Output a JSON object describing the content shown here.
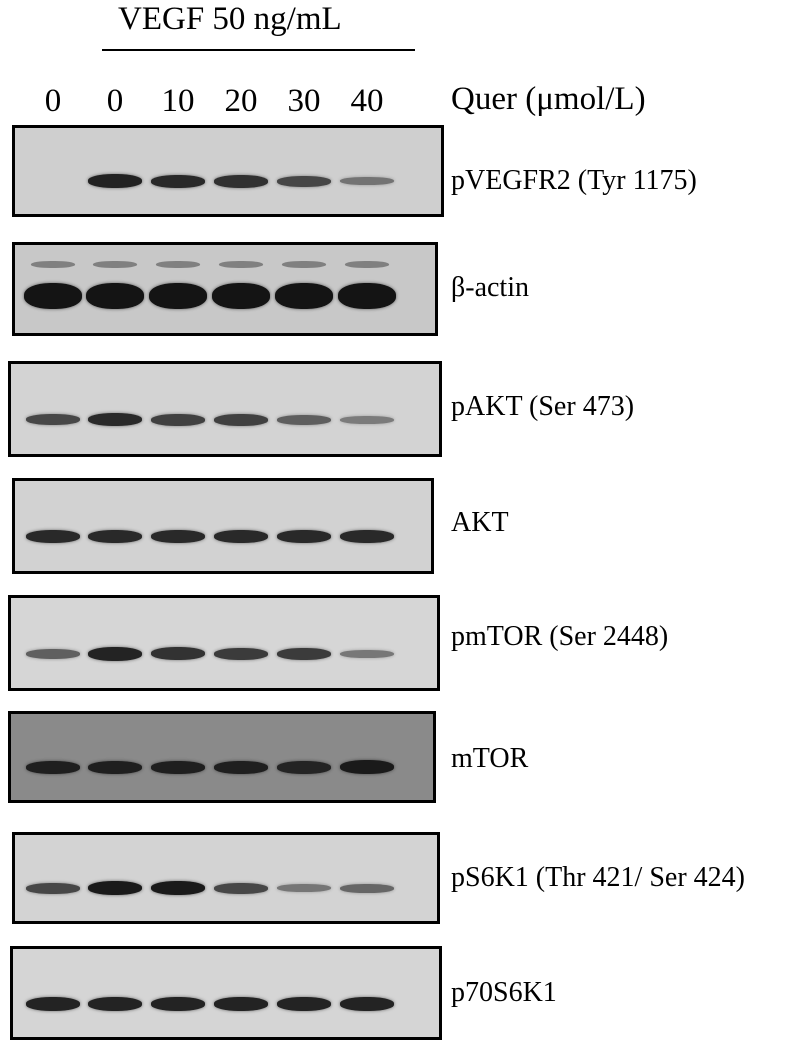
{
  "treatment": {
    "label": "VEGF 50 ng/mL"
  },
  "lanes": {
    "labels": [
      "0",
      "0",
      "10",
      "20",
      "30",
      "40"
    ],
    "unit_label": "Quer (μmol/L)"
  },
  "blots": [
    {
      "label": "pVEGFR2 (Tyr 1175)",
      "background": "#cfcfcf",
      "intensities": [
        0.0,
        0.85,
        0.8,
        0.75,
        0.6,
        0.3
      ]
    },
    {
      "label": "β-actin",
      "background": "#c8c8c8",
      "intensities": [
        0.95,
        0.95,
        0.95,
        0.95,
        0.95,
        0.95
      ]
    },
    {
      "label": "pAKT (Ser 473)",
      "background": "#d3d3d3",
      "intensities": [
        0.6,
        0.8,
        0.65,
        0.65,
        0.45,
        0.25
      ]
    },
    {
      "label": "AKT",
      "background": "#d2d2d2",
      "intensities": [
        0.8,
        0.8,
        0.8,
        0.8,
        0.8,
        0.8
      ]
    },
    {
      "label": "pmTOR (Ser 2448)",
      "background": "#d6d6d6",
      "intensities": [
        0.45,
        0.85,
        0.75,
        0.7,
        0.7,
        0.3
      ]
    },
    {
      "label": "mTOR",
      "background": "#8a8a8a",
      "intensities": [
        0.8,
        0.8,
        0.8,
        0.8,
        0.75,
        0.85
      ]
    },
    {
      "label": "pS6K1 (Thr 421/ Ser 424)",
      "background": "#d3d3d3",
      "intensities": [
        0.6,
        0.9,
        0.9,
        0.6,
        0.3,
        0.4
      ]
    },
    {
      "label": "p70S6K1",
      "background": "#d5d5d5",
      "intensities": [
        0.85,
        0.85,
        0.85,
        0.85,
        0.85,
        0.85
      ]
    }
  ]
}
